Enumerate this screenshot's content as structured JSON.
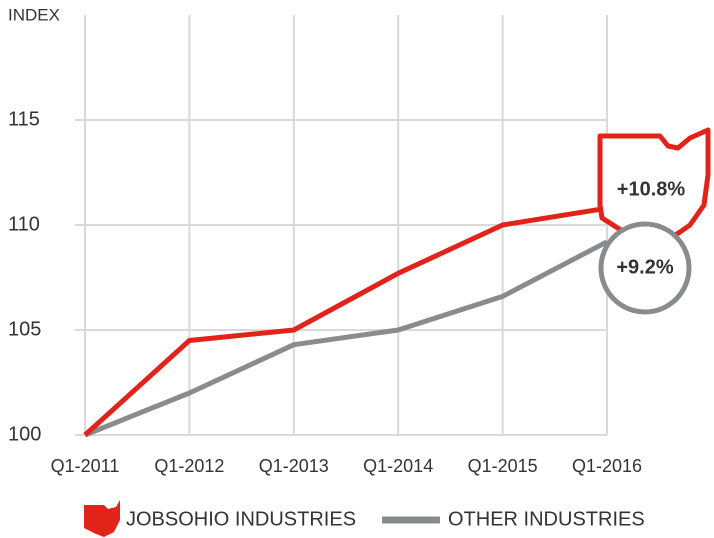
{
  "chart_data": {
    "type": "line",
    "y_axis_label": "INDEX",
    "categories": [
      "Q1-2011",
      "Q1-2012",
      "Q1-2013",
      "Q1-2014",
      "Q1-2015",
      "Q1-2016"
    ],
    "series": [
      {
        "name": "JOBSOHIO INDUSTRIES",
        "color": "#e2231a",
        "values": [
          100,
          104.5,
          105,
          107.7,
          110,
          110.8
        ]
      },
      {
        "name": "OTHER INDUSTRIES",
        "color": "#898b8e",
        "values": [
          100,
          102,
          104.3,
          105,
          106.6,
          109.2
        ]
      }
    ],
    "annotations": [
      "+10.8%",
      "+9.2%"
    ],
    "ylim": [
      100,
      120
    ],
    "yticks": [
      100,
      105,
      110,
      115
    ],
    "grid": true
  }
}
